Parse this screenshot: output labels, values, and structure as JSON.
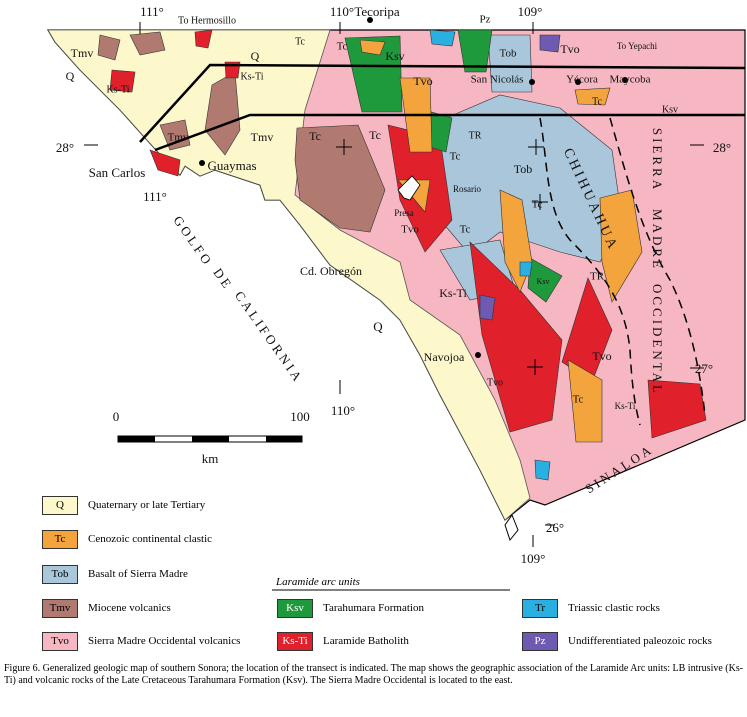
{
  "map": {
    "labels": [
      "111°",
      "To Hermosillo",
      "110°",
      "Tecoripa",
      "Pz",
      "109°",
      "Tmv",
      "Q",
      "Q",
      "Tc",
      "Tc",
      "Ksv",
      "Tob",
      "Tvo",
      "To Yepachi",
      "Ks-Ti",
      "Ks-Ti",
      "Tvo",
      "San Nicolás",
      "Yécora",
      "Maycoba",
      "Tc",
      "Ksv",
      "SIERRA",
      "MADRE",
      "OCCIDENTAL",
      "Tmv",
      "Tmv",
      "28°",
      "28°",
      "San Carlos",
      "Guaymas",
      "111°",
      "TR",
      "Tc",
      "Tc",
      "Tc",
      "Tob",
      "CHIHUAHUA",
      "Rosario",
      "Presa",
      "Tvo",
      "Tc",
      "Tc",
      "GOLFO",
      "DE",
      "CALIFORNIA",
      "Cd. Obregón",
      "TR",
      "Ksv",
      "Ks-Ti",
      "Q",
      "Navojoa",
      "Tvo",
      "Tvo",
      "27°",
      "Tc",
      "Ks-Ti",
      "110°",
      "SINALOA",
      "26°",
      "109°"
    ],
    "scale": {
      "min": 0,
      "max": 100,
      "unit": "km"
    }
  },
  "legend": {
    "heading": "Laramide arc units",
    "items": [
      {
        "code": "Q",
        "text": "Quaternary or late Tertiary",
        "color": "#fdf8cc"
      },
      {
        "code": "Tc",
        "text": "Cenozoic continental clastic",
        "color": "#f4a43c"
      },
      {
        "code": "Tob",
        "text": "Basalt of Sierra Madre",
        "color": "#a9c6da"
      },
      {
        "code": "Tmv",
        "text": "Miocene volcanics",
        "color": "#b07a70"
      },
      {
        "code": "Tvo",
        "text": "Sierra Madre Occidental volcanics",
        "color": "#f6b6c2"
      },
      {
        "code": "Ksv",
        "text": "Tarahumara Formation",
        "color": "#1e9a3c"
      },
      {
        "code": "Ks-Ti",
        "text": "Laramide Batholith",
        "color": "#e0202a"
      },
      {
        "code": "Tr",
        "text": "Triassic clastic rocks",
        "color": "#2ab0e0"
      },
      {
        "code": "Pz",
        "text": "Undifferentiated paleozoic rocks",
        "color": "#6e5ab0"
      }
    ]
  },
  "caption": "Figure 6. Generalized geologic map of southern Sonora; the location of the transect is indicated. The map shows the geographic association of the Laramide Arc units: LB intrusive (Ks-Ti) and volcanic rocks of the Late Cretaceous Tarahumara Formation (Ksv). The Sierra Madre Occidental is located to the east."
}
